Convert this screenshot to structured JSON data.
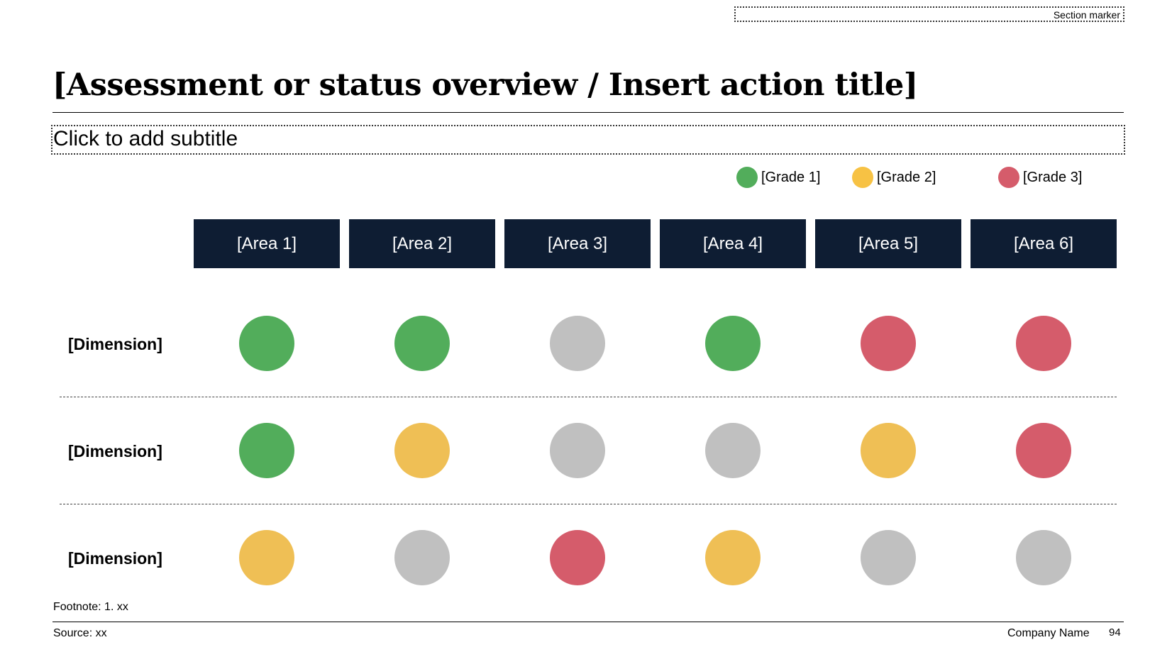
{
  "section_marker": "Section marker",
  "title": "[Assessment or status overview / Insert action title]",
  "subtitle": "Click to add subtitle",
  "colors": {
    "grade1": "#52ad5b",
    "grade2": "#efbf55",
    "grade3": "#d55c6b",
    "none": "#c0c0c0",
    "header_bg": "#0e1d33"
  },
  "legend": [
    {
      "label": "[Grade 1]",
      "color": "#52ad5b"
    },
    {
      "label": "[Grade 2]",
      "color": "#f7c244"
    },
    {
      "label": "[Grade 3]",
      "color": "#d55c6b"
    }
  ],
  "areas": [
    "[Area 1]",
    "[Area 2]",
    "[Area 3]",
    "[Area 4]",
    "[Area 5]",
    "[Area 6]"
  ],
  "rows": [
    {
      "label": "[Dimension]",
      "grades": [
        "grade1",
        "grade1",
        "none",
        "grade1",
        "grade3",
        "grade3"
      ]
    },
    {
      "label": "[Dimension]",
      "grades": [
        "grade1",
        "grade2",
        "none",
        "none",
        "grade2",
        "grade3"
      ]
    },
    {
      "label": "[Dimension]",
      "grades": [
        "grade2",
        "none",
        "grade3",
        "grade2",
        "none",
        "none"
      ]
    }
  ],
  "footnote": "Footnote: 1. xx",
  "source": "Source: xx",
  "company": "Company Name",
  "page_number": "94"
}
